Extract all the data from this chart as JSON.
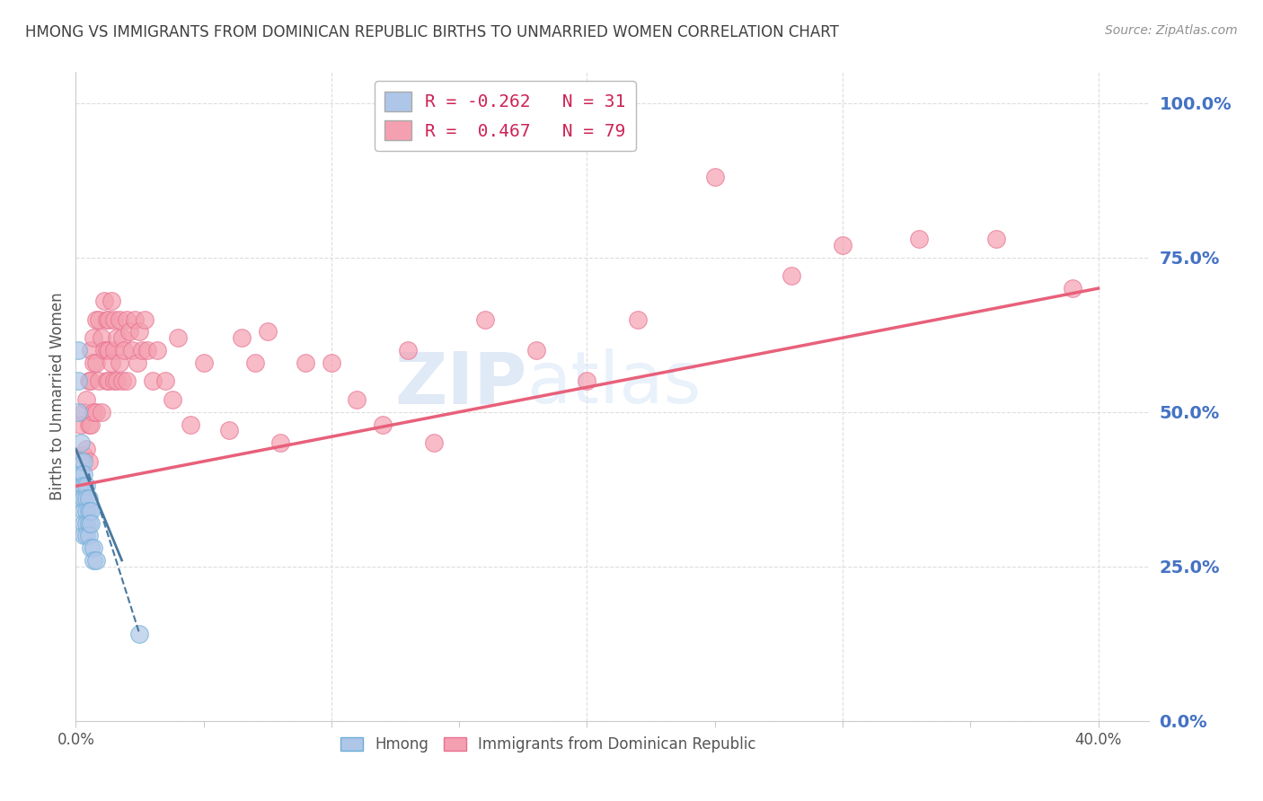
{
  "title": "HMONG VS IMMIGRANTS FROM DOMINICAN REPUBLIC BIRTHS TO UNMARRIED WOMEN CORRELATION CHART",
  "source": "Source: ZipAtlas.com",
  "ylabel": "Births to Unmarried Women",
  "hmong_color": "#aec6e8",
  "hmong_edge": "#6baed6",
  "dr_color": "#f4a0b0",
  "dr_edge": "#e87090",
  "regression_hmong_color": "#4878a0",
  "regression_dr_color": "#e8607a",
  "title_color": "#404040",
  "source_color": "#909090",
  "axis_label_color": "#555555",
  "right_tick_color": "#4472c4",
  "grid_color": "#dddddd",
  "watermark_color": "#c8d8f0",
  "background_color": "#ffffff",
  "hmong_x": [
    0.001,
    0.001,
    0.001,
    0.002,
    0.002,
    0.002,
    0.002,
    0.002,
    0.003,
    0.003,
    0.003,
    0.003,
    0.003,
    0.003,
    0.003,
    0.004,
    0.004,
    0.004,
    0.004,
    0.004,
    0.005,
    0.005,
    0.005,
    0.005,
    0.006,
    0.006,
    0.006,
    0.007,
    0.007,
    0.008,
    0.025
  ],
  "hmong_y": [
    0.6,
    0.55,
    0.5,
    0.45,
    0.42,
    0.4,
    0.38,
    0.36,
    0.42,
    0.4,
    0.38,
    0.36,
    0.34,
    0.32,
    0.3,
    0.38,
    0.36,
    0.34,
    0.32,
    0.3,
    0.36,
    0.34,
    0.32,
    0.3,
    0.34,
    0.32,
    0.28,
    0.28,
    0.26,
    0.26,
    0.14
  ],
  "dr_x": [
    0.002,
    0.003,
    0.003,
    0.004,
    0.004,
    0.005,
    0.005,
    0.005,
    0.006,
    0.006,
    0.006,
    0.007,
    0.007,
    0.007,
    0.008,
    0.008,
    0.008,
    0.009,
    0.009,
    0.01,
    0.01,
    0.011,
    0.011,
    0.012,
    0.012,
    0.012,
    0.013,
    0.013,
    0.013,
    0.014,
    0.014,
    0.015,
    0.015,
    0.015,
    0.016,
    0.016,
    0.017,
    0.017,
    0.018,
    0.018,
    0.019,
    0.02,
    0.02,
    0.021,
    0.022,
    0.023,
    0.024,
    0.025,
    0.026,
    0.027,
    0.028,
    0.03,
    0.032,
    0.035,
    0.038,
    0.04,
    0.045,
    0.05,
    0.06,
    0.065,
    0.07,
    0.075,
    0.08,
    0.09,
    0.1,
    0.11,
    0.12,
    0.13,
    0.14,
    0.16,
    0.18,
    0.2,
    0.22,
    0.25,
    0.28,
    0.3,
    0.33,
    0.36,
    0.39
  ],
  "dr_y": [
    0.48,
    0.5,
    0.43,
    0.52,
    0.44,
    0.55,
    0.48,
    0.42,
    0.6,
    0.55,
    0.48,
    0.62,
    0.58,
    0.5,
    0.65,
    0.58,
    0.5,
    0.65,
    0.55,
    0.62,
    0.5,
    0.68,
    0.6,
    0.65,
    0.6,
    0.55,
    0.65,
    0.6,
    0.55,
    0.68,
    0.58,
    0.65,
    0.6,
    0.55,
    0.62,
    0.55,
    0.65,
    0.58,
    0.62,
    0.55,
    0.6,
    0.65,
    0.55,
    0.63,
    0.6,
    0.65,
    0.58,
    0.63,
    0.6,
    0.65,
    0.6,
    0.55,
    0.6,
    0.55,
    0.52,
    0.62,
    0.48,
    0.58,
    0.47,
    0.62,
    0.58,
    0.63,
    0.45,
    0.58,
    0.58,
    0.52,
    0.48,
    0.6,
    0.45,
    0.65,
    0.6,
    0.55,
    0.65,
    0.88,
    0.72,
    0.77,
    0.78,
    0.78,
    0.7
  ],
  "hmong_line_x": [
    0.0,
    0.018
  ],
  "hmong_line_y": [
    0.44,
    0.26
  ],
  "dr_line_x": [
    0.0,
    0.4
  ],
  "dr_line_y": [
    0.38,
    0.7
  ],
  "xlim": [
    0.0,
    0.42
  ],
  "ylim": [
    0.0,
    1.05
  ],
  "right_yticks": [
    0.0,
    0.25,
    0.5,
    0.75,
    1.0
  ],
  "right_yticklabels": [
    "0.0%",
    "25.0%",
    "50.0%",
    "75.0%",
    "100.0%"
  ]
}
